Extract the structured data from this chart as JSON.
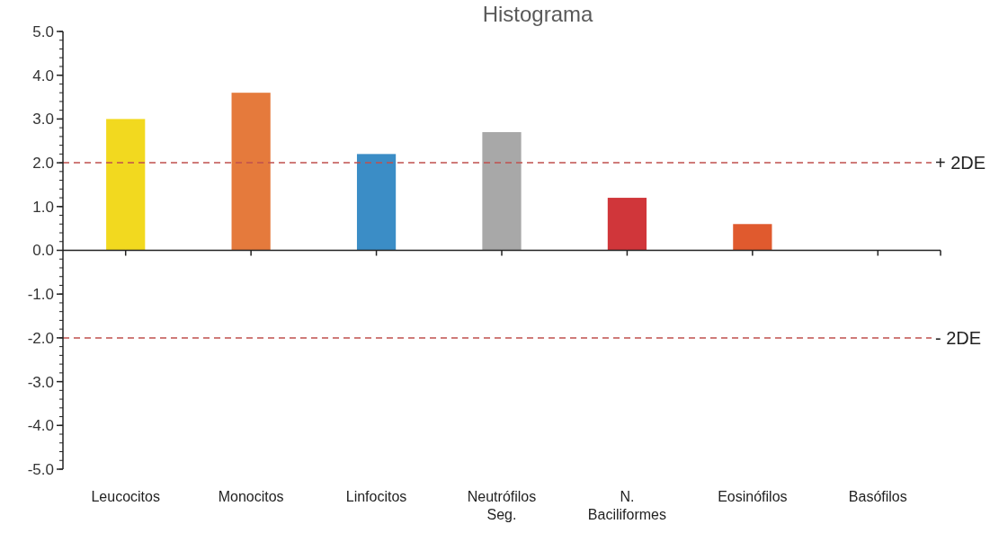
{
  "chart_data": {
    "type": "bar",
    "title": "Histograma",
    "categories": [
      "Leucocitos",
      "Monocitos",
      "Linfocitos",
      "Neutrófilos Seg.",
      "N. Baciliformes",
      "Eosinófilos",
      "Basófilos"
    ],
    "values": [
      3.0,
      3.6,
      2.2,
      2.7,
      1.2,
      0.6,
      0
    ],
    "colors": [
      "#f2d91f",
      "#e57a3c",
      "#3b8dc6",
      "#a8a8a8",
      "#d0363a",
      "#e05a2e",
      "#d0363a"
    ],
    "ylim": [
      -5,
      5
    ],
    "yticks": [
      {
        "value": -5,
        "label": "-5.0"
      },
      {
        "value": -4,
        "label": "-4.0"
      },
      {
        "value": -3,
        "label": "-3.0"
      },
      {
        "value": -2,
        "label": "-2.0"
      },
      {
        "value": -1,
        "label": "-1.0"
      },
      {
        "value": 0,
        "label": "0.0"
      },
      {
        "value": 1,
        "label": "1.0"
      },
      {
        "value": 2,
        "label": "2.0"
      },
      {
        "value": 3,
        "label": "3.0"
      },
      {
        "value": 4,
        "label": "4.0"
      },
      {
        "value": 5,
        "label": "5.0"
      }
    ],
    "ref_lines": [
      {
        "axis": "y",
        "value": 2,
        "label": "+ 2DE",
        "color": "#c0504d",
        "line_style": "dashed"
      },
      {
        "axis": "y",
        "value": -2,
        "label": "- 2DE",
        "color": "#c0504d",
        "line_style": "dashed"
      }
    ],
    "grid": false
  }
}
